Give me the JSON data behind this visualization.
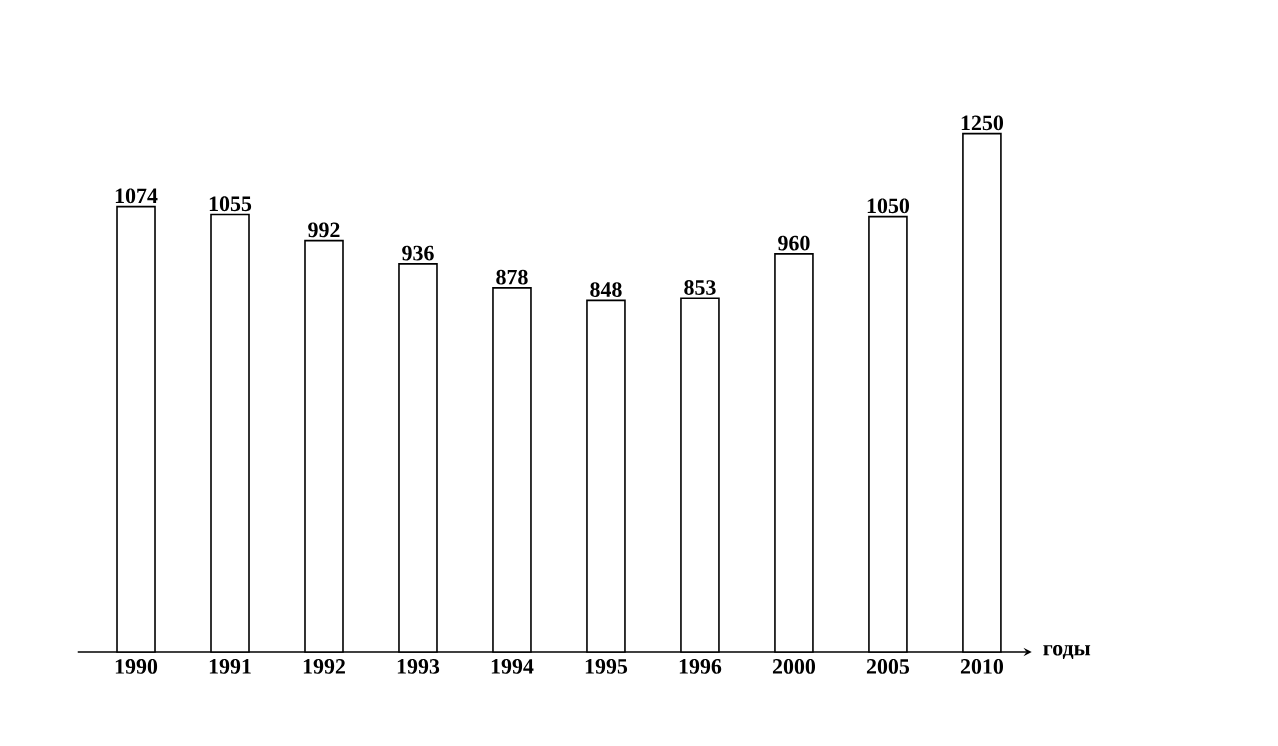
{
  "chart_data": {
    "type": "bar",
    "xlabel": "годы",
    "categories": [
      "1990",
      "1991",
      "1992",
      "1993",
      "1994",
      "1995",
      "1996",
      "2000",
      "2005",
      "2010"
    ],
    "values": [
      1074,
      1055,
      992,
      936,
      878,
      848,
      853,
      960,
      1050,
      1250
    ],
    "color": "#ffffff",
    "data_labels": true
  }
}
